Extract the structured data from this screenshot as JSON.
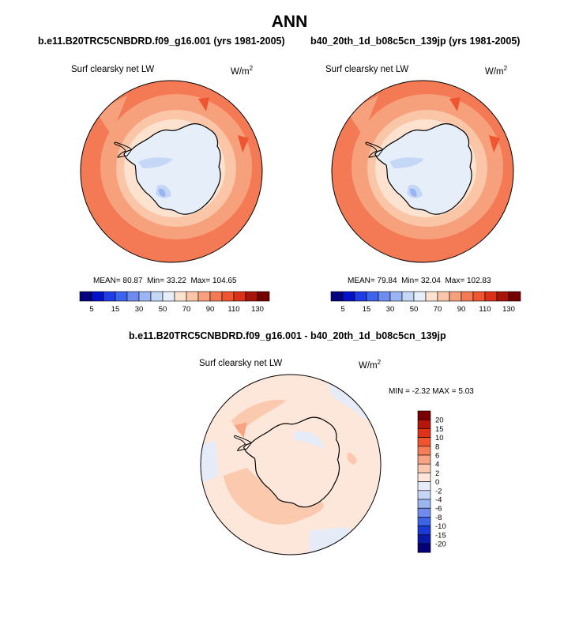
{
  "title": "ANN",
  "panels": [
    {
      "case_title": "b.e11.B20TRC5CNBDRD.f09_g16.001 (yrs 1981-2005)",
      "variable": "Surf clearsky net LW",
      "units": "W/m",
      "units_sup": "2",
      "stats": {
        "mean_label": "MEAN=",
        "mean": "80.87",
        "min_label": "Min=",
        "min": "33.22",
        "max_label": "Max=",
        "max": "104.65"
      }
    },
    {
      "case_title": "b40_20th_1d_b08c5cn_139jp (yrs 1981-2005)",
      "variable": "Surf clearsky net LW",
      "units": "W/m",
      "units_sup": "2",
      "stats": {
        "mean_label": "MEAN=",
        "mean": "79.84",
        "min_label": "Min=",
        "min": "32.04",
        "max_label": "Max=",
        "max": "102.83"
      }
    }
  ],
  "diff_panel": {
    "case_title": "b.e11.B20TRC5CNBDRD.f09_g16.001 - b40_20th_1d_b08c5cn_139jp",
    "variable": "Surf clearsky net LW",
    "units": "W/m",
    "units_sup": "2",
    "minmax": "MIN =  -2.32 MAX =   5.03"
  },
  "colorbar_field": {
    "tick_labels": [
      "5",
      "15",
      "30",
      "50",
      "70",
      "90",
      "110",
      "130"
    ],
    "colors": [
      "#05007d",
      "#0012c8",
      "#1f3ce6",
      "#3c64ec",
      "#6e8cf0",
      "#9bb4f3",
      "#c5d7f6",
      "#e6eefa",
      "#fde3cf",
      "#fbc5a8",
      "#f7a07c",
      "#f37a54",
      "#ee5530",
      "#dd3018",
      "#a8140a",
      "#750000"
    ]
  },
  "colorbar_diff": {
    "tick_labels": [
      "20",
      "15",
      "10",
      "8",
      "6",
      "4",
      "2",
      "0",
      "-2",
      "-4",
      "-6",
      "-8",
      "-10",
      "-15",
      "-20"
    ],
    "colors": [
      "#7a0000",
      "#b8150a",
      "#e0321a",
      "#f2542e",
      "#f57d57",
      "#f8a382",
      "#fbc9ae",
      "#fde7db",
      "#e5ecf8",
      "#c6d5f4",
      "#9cb4f0",
      "#6f8ced",
      "#3d63e8",
      "#1a3ad6",
      "#0a19a8",
      "#040075"
    ]
  },
  "map_colors": {
    "ocean_far": "#f37a54",
    "ocean_mid": "#f7a07c",
    "ocean_near": "#fbc5a8",
    "coast": "#fde3cf",
    "ice": "#e6eefa",
    "ice_dark": "#c5d7f6",
    "ice_darker": "#9bb4f3",
    "hot": "#ee5530",
    "diff_base": "#fde7db",
    "diff_pos": "#fbc9ae",
    "diff_pos2": "#f8a382",
    "diff_neg": "#e5ecf8",
    "diff_neg2": "#c6d5f4",
    "coastline": "#000000"
  }
}
